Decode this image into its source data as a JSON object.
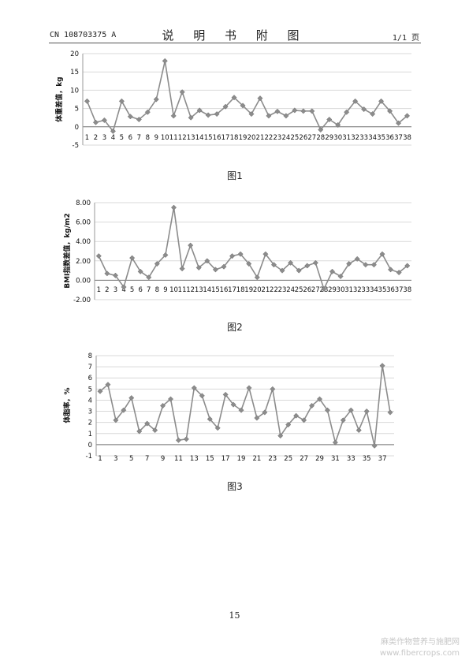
{
  "header": {
    "publication_number": "CN 108703375 A",
    "section_title": "说 明 书 附 图",
    "page_indicator": "1/1 页"
  },
  "figures": [
    {
      "caption": "图1"
    },
    {
      "caption": "图2"
    },
    {
      "caption": "图3"
    }
  ],
  "footer": {
    "page_number": "15",
    "watermark_line1": "麻类作物营养与施肥网",
    "watermark_line2": "www.fibercrops.com"
  },
  "colors": {
    "line": "#8c8c8c",
    "marker": "#8c8c8c",
    "grid": "#d9d9d9"
  },
  "chart_data": [
    {
      "type": "line",
      "ylabel": "体重差值，kg",
      "ylim": [
        -5,
        20
      ],
      "yticks": [
        -5,
        0,
        5,
        10,
        15,
        20
      ],
      "yticklabels": [
        "-5",
        "0",
        "5",
        "10",
        "15",
        "20"
      ],
      "categories": [
        "1",
        "2",
        "3",
        "4",
        "5",
        "6",
        "7",
        "8",
        "9",
        "10",
        "11",
        "12",
        "13",
        "14",
        "15",
        "16",
        "17",
        "18",
        "19",
        "20",
        "21",
        "22",
        "23",
        "24",
        "25",
        "26",
        "27",
        "28",
        "29",
        "30",
        "31",
        "32",
        "33",
        "34",
        "35",
        "36",
        "37",
        "38"
      ],
      "x_tick_labels": [
        "1",
        "2",
        "3",
        "4",
        "5",
        "6",
        "7",
        "8",
        "9",
        "10",
        "11",
        "12",
        "13",
        "14",
        "15",
        "16",
        "17",
        "18",
        "19",
        "20",
        "21",
        "22",
        "23",
        "24",
        "25",
        "26",
        "27",
        "28",
        "29",
        "30",
        "31",
        "32",
        "33",
        "34",
        "35",
        "36",
        "37",
        "38"
      ],
      "series": [
        {
          "values": [
            7.0,
            1.2,
            1.8,
            -1.2,
            7.0,
            2.8,
            2.0,
            4.0,
            7.5,
            18.0,
            3.0,
            9.5,
            2.5,
            4.5,
            3.2,
            3.5,
            5.5,
            8.0,
            5.8,
            3.5,
            7.8,
            3.0,
            4.2,
            3.0,
            4.5,
            4.3,
            4.3,
            -0.8,
            2.0,
            0.5,
            4.0,
            7.0,
            4.8,
            3.5,
            7.0,
            4.3,
            1.0,
            3.0
          ]
        }
      ],
      "grid": true
    },
    {
      "type": "line",
      "ylabel": "BMI指数差值，kg/m2",
      "ylim": [
        -2,
        8
      ],
      "yticks": [
        -2,
        0,
        2,
        4,
        6,
        8
      ],
      "yticklabels": [
        "-2.00",
        "0.00",
        "2.00",
        "4.00",
        "6.00",
        "8.00"
      ],
      "categories": [
        "1",
        "2",
        "3",
        "4",
        "5",
        "6",
        "7",
        "8",
        "9",
        "10",
        "11",
        "12",
        "13",
        "14",
        "15",
        "16",
        "17",
        "18",
        "19",
        "20",
        "21",
        "22",
        "23",
        "24",
        "25",
        "26",
        "27",
        "28",
        "29",
        "30",
        "31",
        "32",
        "33",
        "34",
        "35",
        "36",
        "37",
        "38"
      ],
      "x_tick_labels": [
        "1",
        "2",
        "3",
        "4",
        "5",
        "6",
        "7",
        "8",
        "9",
        "10",
        "11",
        "12",
        "13",
        "14",
        "15",
        "16",
        "17",
        "18",
        "19",
        "20",
        "21",
        "22",
        "23",
        "24",
        "25",
        "26",
        "27",
        "28",
        "29",
        "30",
        "31",
        "32",
        "33",
        "34",
        "35",
        "36",
        "37",
        "38"
      ],
      "series": [
        {
          "values": [
            2.5,
            0.7,
            0.5,
            -0.7,
            2.3,
            0.9,
            0.3,
            1.7,
            2.6,
            7.5,
            1.2,
            3.6,
            1.3,
            2.0,
            1.1,
            1.4,
            2.5,
            2.7,
            1.7,
            0.3,
            2.7,
            1.6,
            1.0,
            1.8,
            1.0,
            1.5,
            1.8,
            -0.9,
            0.9,
            0.4,
            1.7,
            2.2,
            1.6,
            1.6,
            2.7,
            1.1,
            0.8,
            1.5
          ]
        }
      ],
      "grid": true
    },
    {
      "type": "line",
      "ylabel": "体脂率，%",
      "ylim": [
        -1,
        8
      ],
      "yticks": [
        -1,
        0,
        1,
        2,
        3,
        4,
        5,
        6,
        7,
        8
      ],
      "yticklabels": [
        "-1",
        "0",
        "1",
        "2",
        "3",
        "4",
        "5",
        "6",
        "7",
        "8"
      ],
      "categories": [
        "1",
        "2",
        "3",
        "4",
        "5",
        "6",
        "7",
        "8",
        "9",
        "10",
        "11",
        "12",
        "13",
        "14",
        "15",
        "16",
        "17",
        "18",
        "19",
        "20",
        "21",
        "22",
        "23",
        "24",
        "25",
        "26",
        "27",
        "28",
        "29",
        "30",
        "31",
        "32",
        "33",
        "34",
        "35",
        "36",
        "37",
        "38"
      ],
      "x_tick_labels": [
        "1",
        "",
        "3",
        "",
        "5",
        "",
        "7",
        "",
        "9",
        "",
        "11",
        "",
        "13",
        "",
        "15",
        "",
        "17",
        "",
        "19",
        "",
        "21",
        "",
        "23",
        "",
        "25",
        "",
        "27",
        "",
        "29",
        "",
        "31",
        "",
        "33",
        "",
        "35",
        "",
        "37",
        ""
      ],
      "series": [
        {
          "values": [
            4.8,
            5.4,
            2.2,
            3.1,
            4.2,
            1.2,
            1.9,
            1.3,
            3.5,
            4.1,
            0.4,
            0.5,
            5.1,
            4.4,
            2.3,
            1.5,
            4.5,
            3.6,
            3.1,
            5.1,
            2.4,
            2.9,
            5.0,
            0.8,
            1.8,
            2.6,
            2.2,
            3.5,
            4.1,
            3.1,
            0.2,
            2.2,
            3.1,
            1.3,
            3.0,
            -0.1,
            7.1,
            2.9
          ]
        }
      ],
      "grid": true
    }
  ]
}
